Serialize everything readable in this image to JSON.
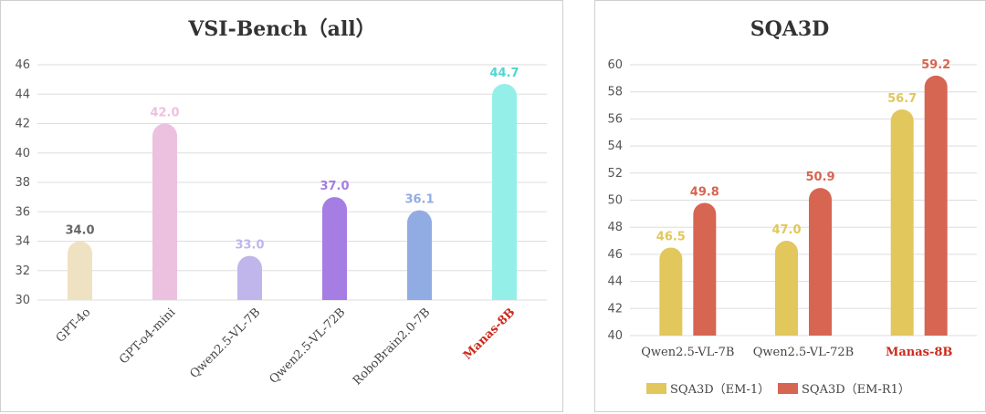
{
  "chart_data": [
    {
      "type": "bar",
      "title": "VSI-Bench（all）",
      "categories": [
        "GPT-4o",
        "GPT-o4-mini",
        "Qwen2.5-VL-7B",
        "Qwen2.5-VL-72B",
        "RoboBrain2.0-7B",
        "Manas-8B"
      ],
      "values": [
        34.0,
        42.0,
        33.0,
        37.0,
        36.1,
        44.7
      ],
      "value_labels": [
        "34.0",
        "42.0",
        "33.0",
        "37.0",
        "36.1",
        "44.7"
      ],
      "colors": [
        "#efe2c3",
        "#ecc1e0",
        "#c1b6ec",
        "#a57de3",
        "#91ace3",
        "#94efe9"
      ],
      "label_colors": [
        "#666666",
        "#ecc1e0",
        "#c1b6ec",
        "#a57de3",
        "#91ace3",
        "#4fd6cf"
      ],
      "highlight_category": "Manas-8B",
      "highlight_color": "#cc2b1d",
      "ylim": [
        30,
        46
      ],
      "yticks": [
        30,
        32,
        34,
        36,
        38,
        40,
        42,
        44,
        46
      ],
      "grid": true,
      "xlabel": "",
      "ylabel": ""
    },
    {
      "type": "bar",
      "title": "SQA3D",
      "categories": [
        "Qwen2.5-VL-7B",
        "Qwen2.5-VL-72B",
        "Manas-8B"
      ],
      "series": [
        {
          "name": "SQA3D（EM-1）",
          "values": [
            46.5,
            47.0,
            56.7
          ],
          "value_labels": [
            "46.5",
            "47.0",
            "56.7"
          ],
          "color": "#e1c75c"
        },
        {
          "name": "SQA3D（EM-R1）",
          "values": [
            49.8,
            50.9,
            59.2
          ],
          "value_labels": [
            "49.8",
            "50.9",
            "59.2"
          ],
          "color": "#d66552"
        }
      ],
      "highlight_category": "Manas-8B",
      "highlight_color": "#cc2b1d",
      "ylim": [
        40,
        60
      ],
      "yticks": [
        40,
        42,
        44,
        46,
        48,
        50,
        52,
        54,
        56,
        58,
        60
      ],
      "legend_position": "bottom",
      "grid": true,
      "xlabel": "",
      "ylabel": ""
    }
  ]
}
